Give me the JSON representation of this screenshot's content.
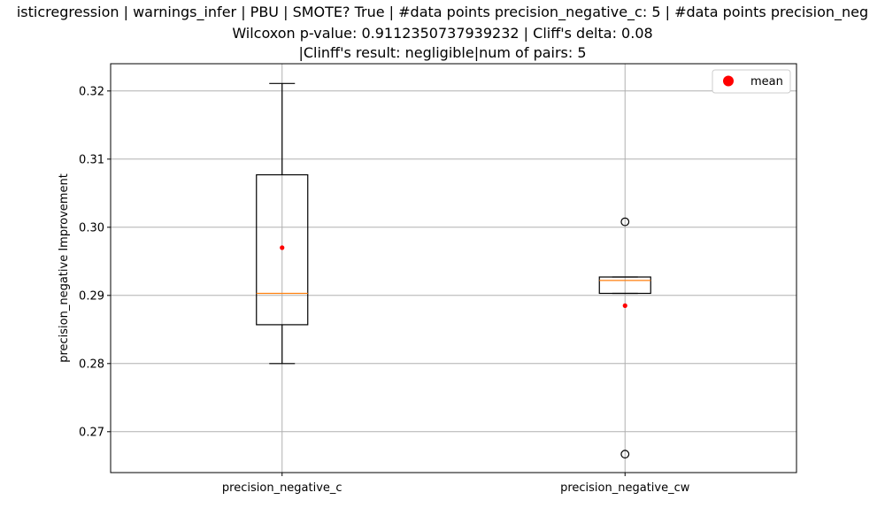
{
  "chart_data": {
    "type": "box",
    "title": [
      "isticregression | warnings_infer | PBU | SMOTE? True | #data points precision_negative_c: 5 | #data points precision_neg",
      "Wilcoxon p-value: 0.9112350737939232 | Cliff's delta: 0.08",
      "|Clinff's result: negligible|num of pairs: 5"
    ],
    "ylabel": "precision_negative Improvement",
    "xlabel": "",
    "ylim": [
      0.264,
      0.324
    ],
    "yticks": [
      0.27,
      0.28,
      0.29,
      0.3,
      0.31,
      0.32
    ],
    "ytick_labels": [
      "0.27",
      "0.28",
      "0.29",
      "0.30",
      "0.31",
      "0.32"
    ],
    "categories": [
      "precision_negative_c",
      "precision_negative_cw"
    ],
    "grid": true,
    "legend": {
      "placement": "top-right",
      "entries": [
        "mean"
      ]
    },
    "colors": {
      "median": "#ff7f0e",
      "mean": "#ff0000",
      "box": "#000000",
      "grid": "#b0b0b0"
    },
    "boxes": [
      {
        "name": "precision_negative_c",
        "whisker_low": 0.28,
        "q1": 0.2857,
        "median": 0.2903,
        "q3": 0.3077,
        "whisker_high": 0.3211,
        "mean": 0.297,
        "fliers": []
      },
      {
        "name": "precision_negative_cw",
        "whisker_low": 0.2903,
        "q1": 0.2903,
        "median": 0.2922,
        "q3": 0.2927,
        "whisker_high": 0.2927,
        "mean": 0.2885,
        "fliers": [
          0.3008,
          0.2667
        ]
      }
    ]
  }
}
